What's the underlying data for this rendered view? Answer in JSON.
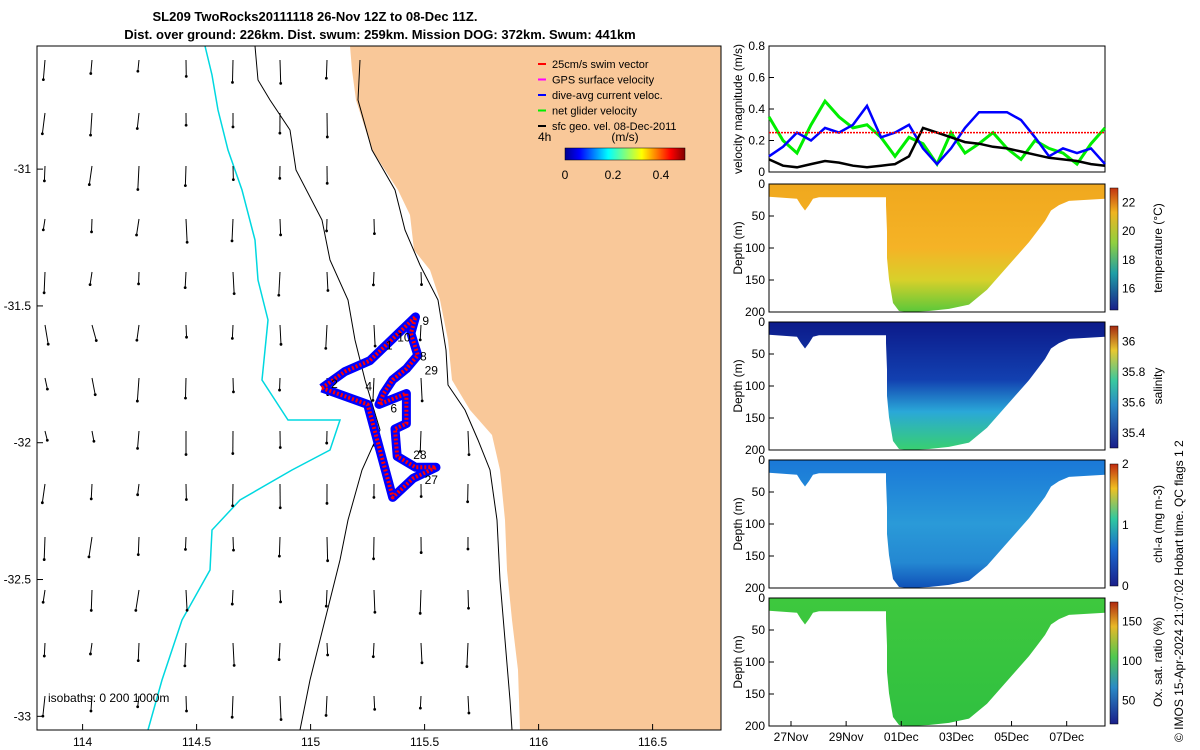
{
  "title": {
    "line1": "SL209 TwoRocks20111118 26-Nov 12Z to 08-Dec 11Z.",
    "line2": "Dist. over ground: 226km. Dist. swum: 259km. Mission DOG: 372km. Swum: 441km"
  },
  "colors": {
    "land": "#f9c899",
    "swim_vector": "#ff0000",
    "gps_velocity": "#ff00ff",
    "dive_avg": "#0000ff",
    "net_glider": "#00ee00",
    "sfc_geo": "#000000",
    "isobath_shallow": "#00d8e0",
    "isobath_deep": "#000000"
  },
  "chart_data": [
    {
      "type": "map",
      "name": "glider-track-map",
      "x_ticks": [
        "114",
        "114.5",
        "115",
        "115.5",
        "116",
        "116.5"
      ],
      "y_ticks": [
        "-31",
        "-31.5",
        "-32",
        "-32.5",
        "-33"
      ],
      "xlim": [
        113.8,
        116.8
      ],
      "ylim": [
        -33.05,
        -30.55
      ],
      "legend": [
        {
          "label": "25cm/s swim vector",
          "color_key": "swim_vector"
        },
        {
          "label": "GPS surface velocity",
          "color_key": "gps_velocity"
        },
        {
          "label": "dive-avg current veloc.",
          "color_key": "dive_avg"
        },
        {
          "label": "net glider velocity",
          "color_key": "net_glider"
        },
        {
          "label": "sfc geo. vel. 08-Dec-2011",
          "color_key": "sfc_geo"
        }
      ],
      "colorbar": {
        "label": "(m/s)",
        "ticks": [
          "0",
          "0.2",
          "0.4"
        ],
        "range": [
          0,
          0.5
        ],
        "side_label": "4h"
      },
      "isobath_label": "isobaths: 0   200  1000m",
      "track_labels": [
        "1",
        "10",
        "9",
        "8",
        "29",
        "2",
        "4",
        "6",
        "28",
        "27"
      ],
      "track_points": [
        [
          115.05,
          -31.8
        ],
        [
          115.15,
          -31.74
        ],
        [
          115.26,
          -31.7
        ],
        [
          115.36,
          -31.62
        ],
        [
          115.46,
          -31.54
        ],
        [
          115.44,
          -31.6
        ],
        [
          115.47,
          -31.68
        ],
        [
          115.42,
          -31.73
        ],
        [
          115.36,
          -31.77
        ],
        [
          115.32,
          -31.82
        ],
        [
          115.3,
          -31.86
        ],
        [
          115.42,
          -31.82
        ],
        [
          115.42,
          -31.93
        ],
        [
          115.37,
          -31.95
        ],
        [
          115.38,
          -32.05
        ],
        [
          115.46,
          -32.09
        ],
        [
          115.55,
          -32.09
        ],
        [
          115.45,
          -32.13
        ],
        [
          115.36,
          -32.2
        ],
        [
          115.25,
          -31.86
        ],
        [
          115.05,
          -31.8
        ]
      ]
    },
    {
      "type": "line",
      "name": "velocity-magnitude",
      "ylabel": "velocity magnitude (m/s)",
      "ylim": [
        0,
        0.8
      ],
      "y_ticks": [
        "0",
        "0.2",
        "0.4",
        "0.6",
        "0.8"
      ],
      "x": [
        0,
        0.5,
        1,
        1.5,
        2,
        2.5,
        3,
        3.5,
        4,
        4.5,
        5,
        5.5,
        6,
        6.5,
        7,
        7.5,
        8,
        8.5,
        9,
        9.5,
        10,
        10.5,
        11,
        11.5,
        12
      ],
      "series": [
        {
          "name": "net glider velocity",
          "color_key": "net_glider",
          "values": [
            0.35,
            0.2,
            0.12,
            0.3,
            0.45,
            0.35,
            0.28,
            0.3,
            0.22,
            0.1,
            0.22,
            0.18,
            0.05,
            0.25,
            0.12,
            0.18,
            0.25,
            0.15,
            0.08,
            0.2,
            0.15,
            0.12,
            0.05,
            0.18,
            0.28
          ]
        },
        {
          "name": "dive-avg current veloc.",
          "color_key": "dive_avg",
          "values": [
            0.1,
            0.16,
            0.25,
            0.2,
            0.28,
            0.25,
            0.3,
            0.42,
            0.22,
            0.25,
            0.3,
            0.15,
            0.05,
            0.15,
            0.28,
            0.38,
            0.38,
            0.38,
            0.33,
            0.22,
            0.1,
            0.15,
            0.12,
            0.15,
            0.05
          ]
        },
        {
          "name": "sfc geo. vel.",
          "color_key": "sfc_geo",
          "values": [
            0.08,
            0.04,
            0.03,
            0.05,
            0.07,
            0.06,
            0.04,
            0.03,
            0.04,
            0.05,
            0.1,
            0.28,
            0.25,
            0.22,
            0.19,
            0.18,
            0.16,
            0.15,
            0.13,
            0.11,
            0.09,
            0.08,
            0.07,
            0.05,
            0.04
          ]
        },
        {
          "name": "25cm/s swim vector",
          "color_key": "swim_vector",
          "values": [
            0.25,
            0.25,
            0.25,
            0.25,
            0.25,
            0.25,
            0.25,
            0.25,
            0.25,
            0.25,
            0.25,
            0.25,
            0.25,
            0.25,
            0.25,
            0.25,
            0.25,
            0.25,
            0.25,
            0.25,
            0.25,
            0.25,
            0.25,
            0.25,
            0.25
          ]
        }
      ]
    },
    {
      "type": "heatmap",
      "name": "temperature-section",
      "ylabel": "Depth (m)",
      "cbar_label": "temperature (°C)",
      "cbar_ticks": [
        "16",
        "18",
        "20",
        "22"
      ],
      "y_ticks": [
        "0",
        "50",
        "100",
        "150",
        "200"
      ]
    },
    {
      "type": "heatmap",
      "name": "salinity-section",
      "ylabel": "Depth (m)",
      "cbar_label": "salinity",
      "cbar_ticks": [
        "35.4",
        "35.6",
        "35.8",
        "36"
      ],
      "y_ticks": [
        "0",
        "50",
        "100",
        "150",
        "200"
      ]
    },
    {
      "type": "heatmap",
      "name": "chla-section",
      "ylabel": "Depth (m)",
      "cbar_label": "chl-a (mg m-3)",
      "cbar_ticks": [
        "0",
        "1",
        "2"
      ],
      "y_ticks": [
        "0",
        "50",
        "100",
        "150",
        "200"
      ]
    },
    {
      "type": "heatmap",
      "name": "oxygen-section",
      "ylabel": "Depth (m)",
      "cbar_label": "Ox. sat. ratio (%)",
      "cbar_ticks": [
        "50",
        "100",
        "150"
      ],
      "y_ticks": [
        "0",
        "50",
        "100",
        "150",
        "200"
      ],
      "x_ticks": [
        "27Nov",
        "29Nov",
        "01Dec",
        "03Dec",
        "05Dec",
        "07Dec"
      ]
    }
  ],
  "footer_note": "© IMOS 15-Apr-2024 21:07:02 Hobart time. QC flags 1  2"
}
